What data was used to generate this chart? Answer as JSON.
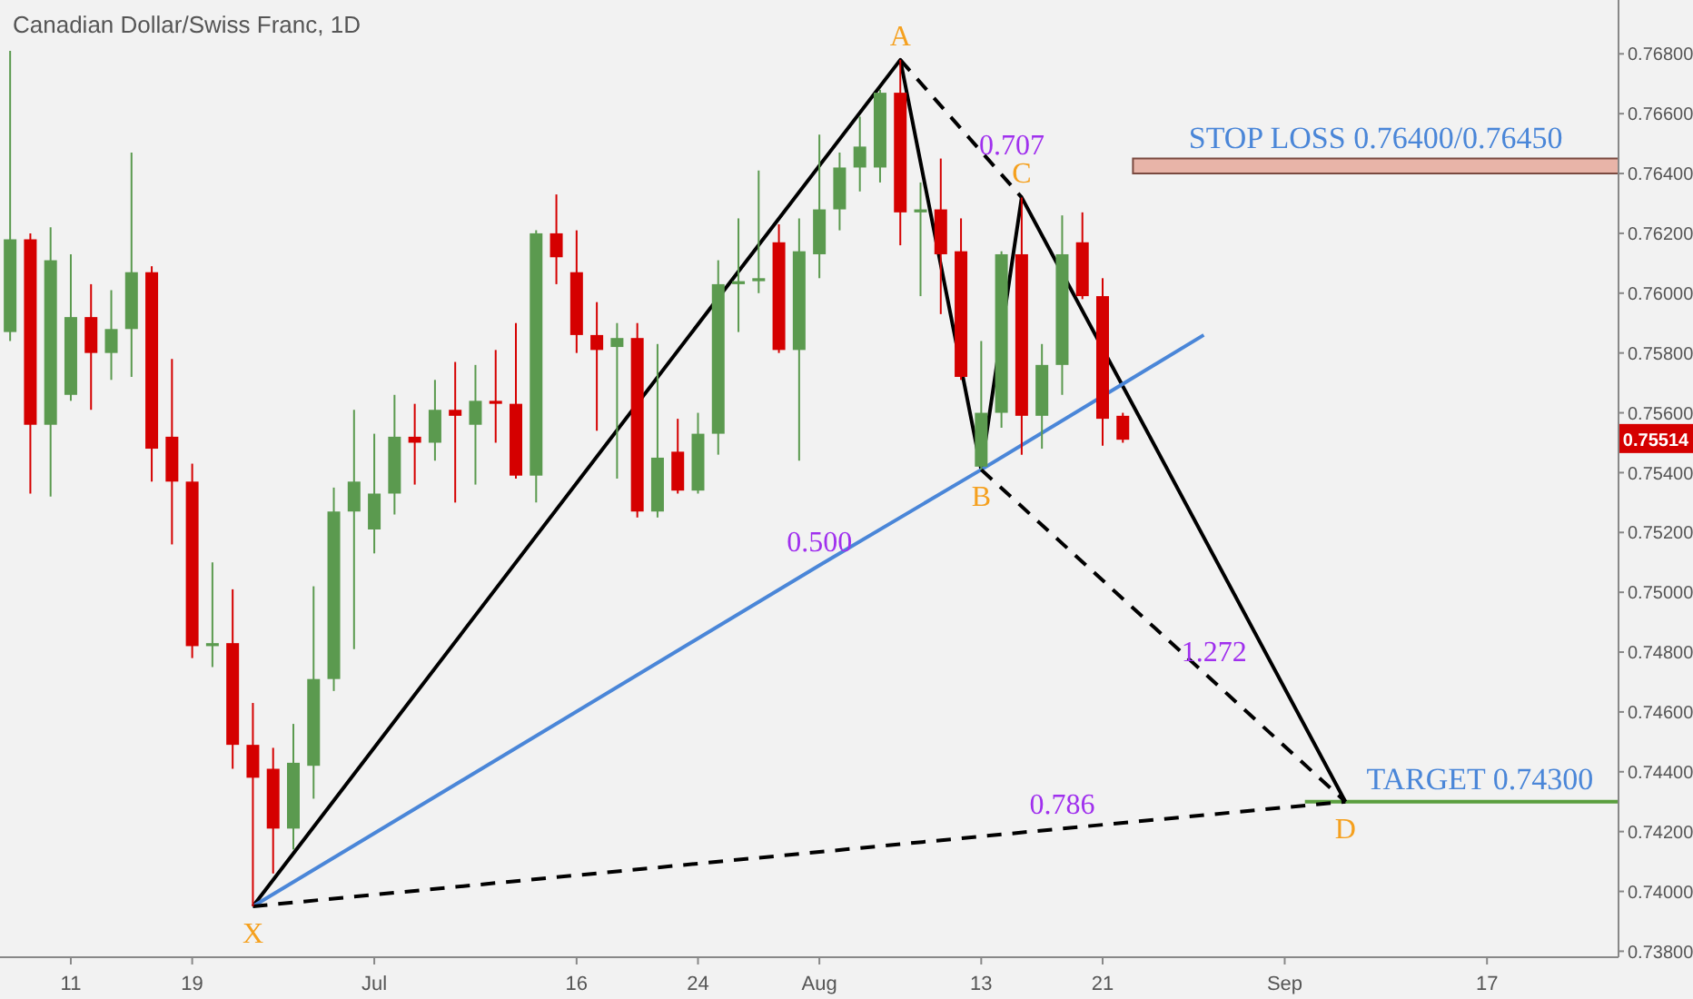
{
  "chart_data": {
    "type": "candlestick",
    "title": "Canadian Dollar/Swiss Franc, 1D",
    "categories": [
      null,
      null,
      null,
      "11",
      null,
      null,
      null,
      null,
      null,
      "19",
      null,
      null,
      null,
      null,
      null,
      null,
      null,
      null,
      "Jul",
      null,
      null,
      null,
      null,
      null,
      null,
      null,
      null,
      null,
      "16",
      null,
      null,
      null,
      null,
      null,
      "24",
      null,
      null,
      null,
      null,
      null,
      "Aug",
      null,
      null,
      null,
      null,
      null,
      null,
      null,
      "13",
      null,
      null,
      null,
      null,
      null,
      "21",
      null,
      null,
      null,
      null,
      null,
      null,
      null,
      null,
      "Sep",
      null,
      null,
      null,
      null,
      null,
      null,
      null,
      null,
      null,
      "17",
      null,
      null,
      null,
      null,
      null,
      null
    ],
    "ohlc": [
      [
        0.7587,
        0.7681,
        0.7584,
        0.7618
      ],
      [
        0.7618,
        0.762,
        0.7533,
        0.7556
      ],
      [
        0.7556,
        0.7622,
        0.7532,
        0.7611
      ],
      [
        0.7566,
        0.7613,
        0.7564,
        0.7592
      ],
      [
        0.7592,
        0.7603,
        0.7561,
        0.758
      ],
      [
        0.758,
        0.7601,
        0.7571,
        0.7588
      ],
      [
        0.7588,
        0.7647,
        0.7572,
        0.7607
      ],
      [
        0.7607,
        0.7609,
        0.7537,
        0.7548
      ],
      [
        0.7552,
        0.7578,
        0.7516,
        0.7537
      ],
      [
        0.7537,
        0.7543,
        0.7478,
        0.7482
      ],
      [
        0.7482,
        0.751,
        0.7475,
        0.7483
      ],
      [
        0.7483,
        0.7501,
        0.7441,
        0.7449
      ],
      [
        0.7449,
        0.7463,
        0.7395,
        0.7438
      ],
      [
        0.7441,
        0.7448,
        0.7406,
        0.7421
      ],
      [
        0.7421,
        0.7456,
        0.7414,
        0.7443
      ],
      [
        0.7442,
        0.7502,
        0.7431,
        0.7471
      ],
      [
        0.7471,
        0.7535,
        0.7467,
        0.7527
      ],
      [
        0.7527,
        0.7561,
        0.7481,
        0.7537
      ],
      [
        0.7521,
        0.7553,
        0.7513,
        0.7533
      ],
      [
        0.7533,
        0.7566,
        0.7526,
        0.7552
      ],
      [
        0.7552,
        0.7563,
        0.7536,
        0.755
      ],
      [
        0.755,
        0.7571,
        0.7544,
        0.7561
      ],
      [
        0.7561,
        0.7577,
        0.753,
        0.7559
      ],
      [
        0.7556,
        0.7576,
        0.7536,
        0.7564
      ],
      [
        0.7564,
        0.7581,
        0.755,
        0.7563
      ],
      [
        0.7563,
        0.759,
        0.7538,
        0.7539
      ],
      [
        0.7539,
        0.7621,
        0.753,
        0.762
      ],
      [
        0.762,
        0.7633,
        0.7603,
        0.7612
      ],
      [
        0.7607,
        0.7621,
        0.758,
        0.7586
      ],
      [
        0.7586,
        0.7597,
        0.7554,
        0.7581
      ],
      [
        0.7582,
        0.759,
        0.7538,
        0.7585
      ],
      [
        0.7585,
        0.759,
        0.7525,
        0.7527
      ],
      [
        0.7527,
        0.7583,
        0.7525,
        0.7545
      ],
      [
        0.7547,
        0.7558,
        0.7533,
        0.7534
      ],
      [
        0.7534,
        0.756,
        0.7533,
        0.7553
      ],
      [
        0.7553,
        0.7611,
        0.7546,
        0.7603
      ],
      [
        0.7603,
        0.7625,
        0.7587,
        0.7604
      ],
      [
        0.7604,
        0.7641,
        0.76,
        0.7605
      ],
      [
        0.7617,
        0.7623,
        0.758,
        0.7581
      ],
      [
        0.7581,
        0.7625,
        0.7544,
        0.7614
      ],
      [
        0.7613,
        0.7653,
        0.7605,
        0.7628
      ],
      [
        0.7628,
        0.7647,
        0.7621,
        0.7642
      ],
      [
        0.7642,
        0.7659,
        0.7634,
        0.7649
      ],
      [
        0.7642,
        0.7668,
        0.7637,
        0.7667
      ],
      [
        0.7667,
        0.7678,
        0.7616,
        0.7627
      ],
      [
        0.7627,
        0.7637,
        0.7599,
        0.7628
      ],
      [
        0.7628,
        0.7645,
        0.7593,
        0.7613
      ],
      [
        0.7614,
        0.7625,
        0.7571,
        0.7572
      ],
      [
        0.7542,
        0.7584,
        0.7541,
        0.756
      ],
      [
        0.756,
        0.7614,
        0.7555,
        0.7613
      ],
      [
        0.7613,
        0.7632,
        0.7546,
        0.7559
      ],
      [
        0.7559,
        0.7583,
        0.7548,
        0.7576
      ],
      [
        0.7576,
        0.7626,
        0.7566,
        0.7613
      ],
      [
        0.7617,
        0.7627,
        0.7598,
        0.7599
      ],
      [
        0.7599,
        0.7605,
        0.7549,
        0.7558
      ],
      [
        0.7559,
        0.756,
        0.755,
        0.7551
      ],
      null,
      null,
      null,
      null,
      null,
      null,
      null,
      null,
      null,
      null,
      null,
      null,
      null,
      null,
      null,
      null,
      null,
      null,
      null,
      null,
      null,
      null,
      null,
      null
    ],
    "colors": [
      "#5b9a4f",
      "#d50000",
      "#5b9a4f",
      "#5b9a4f",
      "#d50000",
      "#5b9a4f",
      "#5b9a4f",
      "#d50000",
      "#d50000",
      "#d50000",
      "#5b9a4f",
      "#d50000",
      "#d50000",
      "#d50000",
      "#5b9a4f",
      "#5b9a4f",
      "#5b9a4f",
      "#5b9a4f",
      "#5b9a4f",
      "#5b9a4f",
      "#d50000",
      "#5b9a4f",
      "#d50000",
      "#5b9a4f",
      "#d50000",
      "#d50000",
      "#5b9a4f",
      "#d50000",
      "#d50000",
      "#d50000",
      "#5b9a4f",
      "#d50000",
      "#5b9a4f",
      "#d50000",
      "#5b9a4f",
      "#5b9a4f",
      "#5b9a4f",
      "#5b9a4f",
      "#d50000",
      "#5b9a4f",
      "#5b9a4f",
      "#5b9a4f",
      "#5b9a4f",
      "#5b9a4f",
      "#d50000",
      "#5b9a4f",
      "#d50000",
      "#d50000",
      "#5b9a4f",
      "#5b9a4f",
      "#d50000",
      "#5b9a4f",
      "#5b9a4f",
      "#d50000",
      "#d50000",
      "#d50000",
      null,
      null,
      null,
      null,
      null,
      null,
      null,
      null,
      null,
      null,
      null,
      null,
      null,
      null,
      null,
      null,
      null,
      null,
      null,
      null,
      null,
      null,
      null,
      null
    ],
    "series": [
      {
        "type": "line",
        "color": "#000000",
        "line_style": "solid",
        "values": [
          null,
          null,
          null,
          null,
          null,
          null,
          null,
          null,
          null,
          null,
          null,
          null,
          0.7395,
          null,
          null,
          null,
          null,
          null,
          null,
          null,
          null,
          null,
          null,
          null,
          null,
          null,
          null,
          null,
          null,
          null,
          null,
          null,
          null,
          null,
          null,
          null,
          null,
          null,
          null,
          null,
          null,
          null,
          null,
          null,
          0.7678,
          null,
          null,
          null,
          0.7541,
          null,
          0.7632,
          null,
          null,
          null,
          null,
          null,
          null,
          null,
          null,
          null,
          null,
          null,
          null,
          null,
          null,
          null,
          0.743,
          null,
          null,
          null,
          null,
          null,
          null,
          null,
          null,
          null,
          null,
          null,
          null,
          null
        ],
        "value_labels": [
          null,
          null,
          null,
          null,
          null,
          null,
          null,
          null,
          null,
          null,
          null,
          null,
          "X",
          null,
          null,
          null,
          null,
          null,
          null,
          null,
          null,
          null,
          null,
          null,
          null,
          null,
          null,
          null,
          null,
          null,
          null,
          null,
          null,
          null,
          null,
          null,
          null,
          null,
          null,
          null,
          null,
          null,
          null,
          null,
          "A",
          null,
          null,
          null,
          "B",
          null,
          "C",
          null,
          null,
          null,
          null,
          null,
          null,
          null,
          null,
          null,
          null,
          null,
          null,
          null,
          null,
          null,
          "D",
          null,
          null,
          null,
          null,
          null,
          null,
          null,
          null,
          null,
          null,
          null,
          null,
          null
        ]
      },
      {
        "type": "line",
        "name": "0.500",
        "color": "#4a86d8",
        "line_style": "solid",
        "values": [
          null,
          null,
          null,
          null,
          null,
          null,
          null,
          null,
          null,
          null,
          null,
          null,
          0.7395,
          null,
          null,
          null,
          null,
          null,
          null,
          null,
          null,
          null,
          null,
          null,
          null,
          null,
          null,
          null,
          null,
          null,
          null,
          null,
          null,
          null,
          null,
          null,
          null,
          null,
          null,
          null,
          0.7509,
          null,
          null,
          null,
          null,
          null,
          null,
          null,
          0.7541,
          null,
          null,
          null,
          null,
          null,
          null,
          null,
          null,
          null,
          null,
          0.7586,
          null,
          null,
          null,
          null,
          null,
          null,
          null,
          null,
          null,
          null,
          null,
          null,
          null,
          null,
          null,
          null,
          null,
          null,
          null,
          null
        ]
      },
      {
        "type": "line",
        "name": "0.786",
        "color": "#000000",
        "line_style": "dashed",
        "values": [
          null,
          null,
          null,
          null,
          null,
          null,
          null,
          null,
          null,
          null,
          null,
          null,
          0.7395,
          null,
          null,
          null,
          null,
          null,
          null,
          null,
          null,
          null,
          null,
          null,
          null,
          null,
          null,
          null,
          null,
          null,
          null,
          null,
          null,
          null,
          null,
          null,
          null,
          null,
          null,
          null,
          null,
          null,
          null,
          null,
          null,
          null,
          null,
          null,
          null,
          null,
          null,
          null,
          0.7421,
          null,
          null,
          null,
          null,
          null,
          null,
          null,
          null,
          null,
          null,
          null,
          null,
          null,
          0.743,
          null,
          null,
          null,
          null,
          null,
          null,
          null,
          null,
          null,
          null,
          null,
          null,
          null
        ]
      },
      {
        "type": "line",
        "name": "0.707",
        "color": "#000000",
        "line_style": "dashed",
        "values": [
          null,
          null,
          null,
          null,
          null,
          null,
          null,
          null,
          null,
          null,
          null,
          null,
          null,
          null,
          null,
          null,
          null,
          null,
          null,
          null,
          null,
          null,
          null,
          null,
          null,
          null,
          null,
          null,
          null,
          null,
          null,
          null,
          null,
          null,
          null,
          null,
          null,
          null,
          null,
          null,
          null,
          null,
          null,
          null,
          0.7678,
          null,
          null,
          0.7655,
          null,
          null,
          0.7632,
          null,
          null,
          null,
          null,
          null,
          null,
          null,
          null,
          null,
          null,
          null,
          null,
          null,
          null,
          null,
          null,
          null,
          null,
          null,
          null,
          null,
          null,
          null,
          null,
          null,
          null,
          null,
          null,
          null
        ]
      },
      {
        "type": "line",
        "name": "1.272",
        "color": "#000000",
        "line_style": "dashed",
        "values": [
          null,
          null,
          null,
          null,
          null,
          null,
          null,
          null,
          null,
          null,
          null,
          null,
          null,
          null,
          null,
          null,
          null,
          null,
          null,
          null,
          null,
          null,
          null,
          null,
          null,
          null,
          null,
          null,
          null,
          null,
          null,
          null,
          null,
          null,
          null,
          null,
          null,
          null,
          null,
          null,
          null,
          null,
          null,
          null,
          null,
          null,
          null,
          null,
          0.7541,
          null,
          null,
          null,
          null,
          null,
          null,
          null,
          null,
          0.74855,
          null,
          null,
          null,
          null,
          null,
          null,
          null,
          null,
          0.743,
          null,
          null,
          null,
          null,
          null,
          null,
          null,
          null,
          null,
          null,
          null,
          null,
          null
        ]
      }
    ],
    "ylim": [
      0.7378,
      0.7698
    ],
    "yticks": [
      {
        "value": 0.738,
        "label": "0.73800"
      },
      {
        "value": 0.74,
        "label": "0.74000"
      },
      {
        "value": 0.742,
        "label": "0.74200"
      },
      {
        "value": 0.744,
        "label": "0.74400"
      },
      {
        "value": 0.746,
        "label": "0.74600"
      },
      {
        "value": 0.748,
        "label": "0.74800"
      },
      {
        "value": 0.75,
        "label": "0.75000"
      },
      {
        "value": 0.752,
        "label": "0.75200"
      },
      {
        "value": 0.754,
        "label": "0.75400"
      },
      {
        "value": 0.756,
        "label": "0.75600"
      },
      {
        "value": 0.758,
        "label": "0.75800"
      },
      {
        "value": 0.76,
        "label": "0.76000"
      },
      {
        "value": 0.762,
        "label": "0.76200"
      },
      {
        "value": 0.764,
        "label": "0.76400"
      },
      {
        "value": 0.766,
        "label": "0.76600"
      },
      {
        "value": 0.768,
        "label": "0.76800"
      }
    ],
    "bands": [
      {
        "axis": "y",
        "from": 0.764,
        "to": 0.7645,
        "label": "STOP LOSS 0.76400/0.76450",
        "color": "#e8b4a8"
      }
    ],
    "ref_lines": [
      {
        "axis": "y",
        "value": 0.743,
        "label": "TARGET 0.74300",
        "color": "#5a9e3e"
      }
    ],
    "annotations": [
      {
        "text": "0.75514",
        "y": 0.75514
      }
    ]
  }
}
